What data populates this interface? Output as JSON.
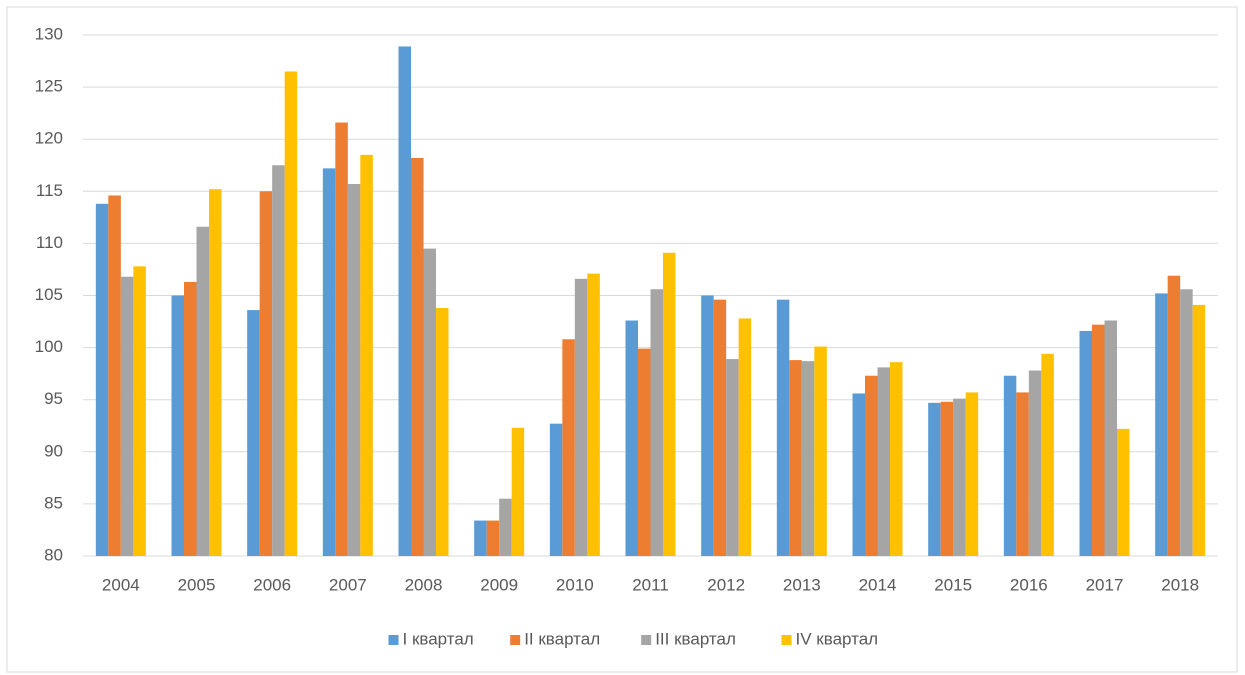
{
  "chart_data": {
    "type": "bar",
    "categories": [
      "2004",
      "2005",
      "2006",
      "2007",
      "2008",
      "2009",
      "2010",
      "2011",
      "2012",
      "2013",
      "2014",
      "2015",
      "2016",
      "2017",
      "2018"
    ],
    "series": [
      {
        "name": "I квартал",
        "color": "#5b9bd5",
        "values": [
          113.8,
          105.0,
          103.6,
          117.2,
          128.9,
          83.4,
          92.7,
          102.6,
          105.0,
          104.6,
          95.6,
          94.7,
          97.3,
          101.6,
          105.2
        ]
      },
      {
        "name": "II квартал",
        "color": "#ed7d31",
        "values": [
          114.6,
          106.3,
          115.0,
          121.6,
          118.2,
          83.4,
          100.8,
          99.9,
          104.6,
          98.8,
          97.3,
          94.8,
          95.7,
          102.2,
          106.9
        ]
      },
      {
        "name": "III квартал",
        "color": "#a5a5a5",
        "values": [
          106.8,
          111.6,
          117.5,
          115.7,
          109.5,
          85.5,
          106.6,
          105.6,
          98.9,
          98.7,
          98.1,
          95.1,
          97.8,
          102.6,
          105.6
        ]
      },
      {
        "name": "IV квартал",
        "color": "#ffc000",
        "values": [
          107.8,
          115.2,
          126.5,
          118.5,
          103.8,
          92.3,
          107.1,
          109.1,
          102.8,
          100.1,
          98.6,
          95.7,
          99.4,
          92.2,
          104.1
        ]
      }
    ],
    "ylim": [
      80,
      130
    ],
    "yticks": [
      80,
      85,
      90,
      95,
      100,
      105,
      110,
      115,
      120,
      125,
      130
    ],
    "grid": true,
    "legend": "bottom"
  }
}
